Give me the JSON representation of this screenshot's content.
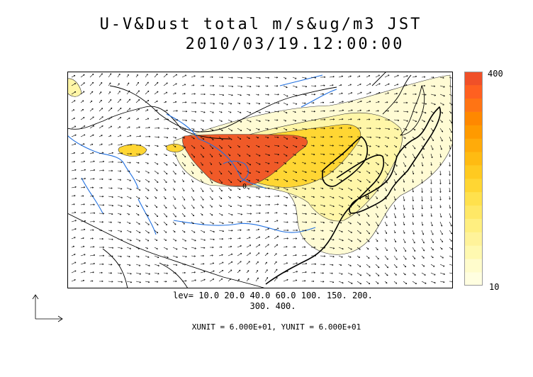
{
  "title": {
    "line1": "U-V&Dust total m/s&ug/m3 JST",
    "line2": "2010/03/19.12:00:00"
  },
  "colorbar": {
    "max_label": "400",
    "min_label": "10",
    "colors": [
      "#fffee0",
      "#fffccc",
      "#fff9b0",
      "#fff39a",
      "#ffef80",
      "#ffe866",
      "#ffe14d",
      "#ffd633",
      "#ffca20",
      "#ffbb12",
      "#ffab0a",
      "#ff9a00",
      "#ff8800",
      "#ff7414",
      "#ff6020",
      "#f05028"
    ]
  },
  "legend": {
    "levels_line1": "lev= 10.0 20.0 40.0 60.0 100. 150. 200.",
    "levels_line2": "300. 400.",
    "units": "XUNIT = 6.000E+01, YUNIT = 6.000E+01"
  },
  "map": {
    "contour_label": "0",
    "colors": {
      "coast": "#000000",
      "river": "#1f6fe0",
      "dust_high": "#f05a28",
      "dust_mid": "#ffd633",
      "dust_low": "#fff6a8",
      "dust_faint": "#fffbd4"
    }
  }
}
